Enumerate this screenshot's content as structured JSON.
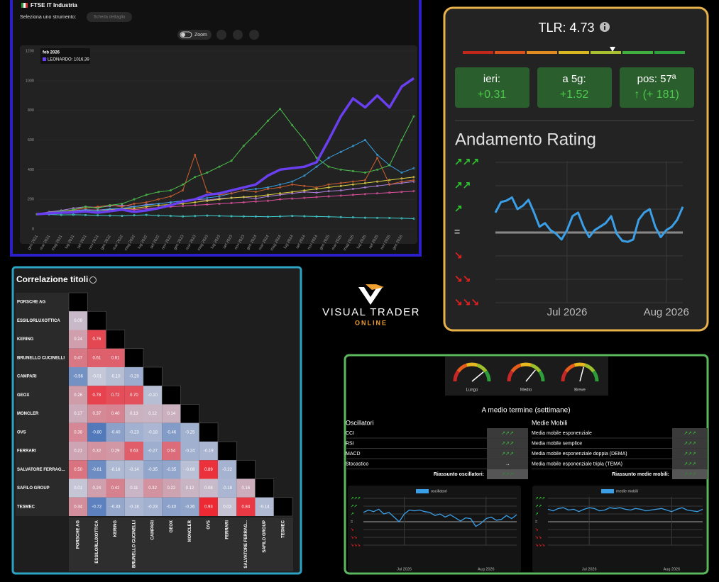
{
  "price_chart": {
    "title": "FTSE IT Industria",
    "select_label": "Seleziona uno strumento:",
    "detail_button": "Scheda dettaglio",
    "zoom_label": "Zoom",
    "tooltip_date": "feb 2026",
    "tooltip_text": "LEONARDO: 1016,39",
    "ylim": [
      0,
      1200
    ],
    "yticks": [
      0,
      200,
      400,
      600,
      800,
      1000,
      1200
    ],
    "categories": [
      "gen 2021",
      "mar 2021",
      "mag 2021",
      "lug 2021",
      "set 2021",
      "nov 2021",
      "gen 2022",
      "mar 2022",
      "mag 2022",
      "lug 2022",
      "set 2022",
      "nov 2022",
      "gen 2023",
      "mar 2023",
      "mag 2023",
      "lug 2023",
      "set 2023",
      "nov 2023",
      "gen 2024",
      "mar 2024",
      "mag 2024",
      "lug 2024",
      "set 2024",
      "nov 2024",
      "gen 2025",
      "mar 2025",
      "mag 2025",
      "lug 2025",
      "set 2025",
      "nov 2025",
      "gen 2026",
      null
    ],
    "series": [
      {
        "color": "#40d0d0",
        "values": [
          100,
          98,
          95,
          96,
          94,
          92,
          90,
          88,
          92,
          95,
          90,
          88,
          85,
          87,
          90,
          88,
          86,
          85,
          84,
          82,
          85,
          88,
          86,
          84,
          82,
          80,
          78,
          76,
          75,
          74,
          72,
          70
        ]
      },
      {
        "color": "#e050a0",
        "values": [
          100,
          110,
          120,
          125,
          130,
          128,
          135,
          140,
          130,
          138,
          145,
          150,
          155,
          160,
          165,
          170,
          175,
          180,
          185,
          190,
          200,
          205,
          210,
          215,
          220,
          225,
          230,
          235,
          240,
          245,
          250,
          255
        ]
      },
      {
        "color": "#b080e0",
        "values": [
          100,
          115,
          125,
          140,
          150,
          145,
          155,
          160,
          150,
          165,
          170,
          180,
          190,
          200,
          195,
          205,
          210,
          215,
          205,
          220,
          230,
          240,
          250,
          245,
          255,
          260,
          270,
          280,
          290,
          300,
          310,
          320
        ]
      },
      {
        "color": "#e0d040",
        "values": [
          100,
          105,
          112,
          120,
          128,
          125,
          130,
          135,
          140,
          150,
          160,
          165,
          170,
          180,
          190,
          200,
          210,
          215,
          220,
          230,
          240,
          250,
          260,
          270,
          280,
          290,
          300,
          310,
          320,
          330,
          340,
          350
        ]
      },
      {
        "color": "#3aa0e0",
        "values": [
          100,
          105,
          110,
          120,
          130,
          125,
          135,
          140,
          150,
          160,
          170,
          180,
          190,
          200,
          210,
          220,
          240,
          260,
          270,
          280,
          300,
          320,
          360,
          420,
          480,
          520,
          560,
          600,
          500,
          430,
          380,
          410
        ]
      },
      {
        "color": "#d06030",
        "values": [
          100,
          110,
          115,
          130,
          140,
          150,
          160,
          150,
          170,
          180,
          200,
          220,
          260,
          500,
          250,
          230,
          240,
          260,
          250,
          270,
          280,
          300,
          290,
          280,
          300,
          310,
          320,
          330,
          480,
          300,
          320,
          330
        ]
      },
      {
        "color": "#4cc04c",
        "values": [
          100,
          110,
          120,
          130,
          150,
          140,
          160,
          170,
          200,
          230,
          250,
          260,
          300,
          350,
          380,
          420,
          460,
          560,
          640,
          730,
          810,
          700,
          600,
          480,
          420,
          400,
          390,
          380,
          400,
          430,
          600,
          760
        ]
      },
      {
        "color": "#6a3ff0",
        "values": [
          100,
          105,
          110,
          112,
          118,
          110,
          120,
          130,
          115,
          125,
          140,
          160,
          185,
          200,
          230,
          240,
          260,
          280,
          300,
          360,
          400,
          410,
          420,
          450,
          600,
          760,
          880,
          820,
          900,
          820,
          960,
          1016.39
        ]
      }
    ]
  },
  "rating_panel": {
    "tlr": "TLR: 4.73",
    "boxes": [
      {
        "label": "ieri:",
        "value": "+0.31"
      },
      {
        "label": "a 5g:",
        "value": "+1.52"
      },
      {
        "label": "pos: 57ª",
        "value": "↑ (+ 181)"
      }
    ],
    "title": "Andamento Rating",
    "color": "#3a9fe6",
    "categories": [
      null,
      null,
      null,
      null,
      null,
      null,
      null,
      null,
      null,
      null,
      null,
      null,
      null,
      "Jul 2026",
      null,
      null,
      null,
      null,
      null,
      null,
      null,
      null,
      null,
      null,
      null,
      null,
      null,
      null,
      null,
      null,
      null,
      "Aug 2026",
      null,
      null,
      null
    ],
    "values": [
      0.85,
      1.3,
      1.36,
      1.5,
      1.0,
      1.15,
      1.4,
      0.85,
      0.25,
      0.4,
      0.1,
      -0.05,
      -0.3,
      0.1,
      0.7,
      0.85,
      0.25,
      -0.2,
      0.1,
      0.25,
      0.4,
      0.7,
      -0.05,
      -0.35,
      -0.4,
      -0.3,
      0.55,
      0.85,
      1.0,
      0.25,
      -0.2,
      0.1,
      0.25,
      0.55,
      1.1
    ]
  },
  "rating_levels": [
    {
      "value": 3,
      "label": "↗↗↗"
    },
    {
      "value": 2,
      "label": "↗↗"
    },
    {
      "value": 1,
      "label": "↗"
    },
    {
      "value": 0,
      "label": "="
    },
    {
      "value": -1,
      "label": "↘"
    },
    {
      "value": -2,
      "label": "↘↘"
    },
    {
      "value": -3,
      "label": "↘↘↘"
    }
  ],
  "correlation": {
    "title": "Correlazione titoli",
    "names": [
      "PORSCHE AG",
      "ESSILORLUXOTTICA",
      "KERING",
      "BRUNELLO CUCINELLI",
      "CAMPARI",
      "GEOX",
      "MONCLER",
      "OVS",
      "FERRARI",
      "SALVATORE FERRAG...",
      "SAFILO GROUP",
      "TESMEC"
    ],
    "matrix": [
      [],
      [
        0.09
      ],
      [
        0.24,
        0.76
      ],
      [
        0.47,
        0.61,
        0.61
      ],
      [
        -0.56,
        -0.01,
        -0.1,
        -0.29
      ],
      [
        0.26,
        0.78,
        0.72,
        0.7,
        -0.1
      ],
      [
        0.17,
        0.37,
        0.4,
        0.13,
        0.12,
        0.14
      ],
      [
        0.38,
        -0.8,
        -0.4,
        -0.23,
        -0.18,
        -0.46,
        -0.25
      ],
      [
        0.21,
        0.32,
        0.29,
        0.63,
        -0.27,
        0.54,
        -0.24,
        -0.19
      ],
      [
        0.5,
        -0.61,
        -0.16,
        -0.14,
        -0.35,
        -0.35,
        -0.08,
        0.89,
        -0.22
      ],
      [
        0.01,
        0.24,
        0.42,
        0.11,
        0.32,
        0.22,
        0.12,
        0.08,
        -0.18,
        0.16
      ],
      [
        0.34,
        -0.72,
        -0.33,
        -0.18,
        -0.23,
        -0.4,
        -0.36,
        0.93,
        0.03,
        0.84,
        -0.14
      ]
    ],
    "labels": [
      [],
      [
        "0.09"
      ],
      [
        "0.24",
        "0.76"
      ],
      [
        "0.47",
        "0.61",
        "0.61"
      ],
      [
        "-0.56",
        "-0.01",
        "-0.10",
        "-0.29"
      ],
      [
        "0.26",
        "0.78",
        "0.72",
        "0.70",
        "-0.10"
      ],
      [
        "0.17",
        "0.37",
        "0.40",
        "0.13",
        "0.12",
        "0.14"
      ],
      [
        "0.38",
        "-0.80",
        "-0.40",
        "-0.23",
        "-0.18",
        "-0.46",
        "-0.25"
      ],
      [
        "0.21",
        "0.32",
        "0.29",
        "0.63",
        "-0.27",
        "0.54",
        "-0.24",
        "-0.19"
      ],
      [
        "0.50",
        "-0.61",
        "-0.16",
        "-0.14",
        "-0.35",
        "-0.35",
        "-0.08",
        "0.89",
        "-0.22"
      ],
      [
        "0.01",
        "0.24",
        "0.42",
        "0.11",
        "0.32",
        "0.22",
        "0.12",
        "0.08",
        "-0.18",
        "0.16"
      ],
      [
        "0.34",
        "-0.72",
        "-0.33",
        "-0.18",
        "-0.23",
        "-0.40",
        "-0.36",
        "0.93",
        "0.03",
        "0.84",
        "-0.14"
      ]
    ]
  },
  "logo": {
    "name": "VISUAL TRADER",
    "tagline": "ONLINE"
  },
  "indicators": {
    "gauges": [
      {
        "label": "Lungo",
        "value": 78
      },
      {
        "label": "Medio",
        "value": 72
      },
      {
        "label": "Breve",
        "value": 58
      }
    ],
    "heading": "A medio termine (settimane)",
    "oscillators": {
      "title": "Oscillatori",
      "rows": [
        {
          "name": "CCI",
          "signal": "↗↗↗",
          "color": "#3cc43c"
        },
        {
          "name": "RSI",
          "signal": "↗↗↗",
          "color": "#3cc43c"
        },
        {
          "name": "MACD",
          "signal": "↗↗↗",
          "color": "#3cc43c"
        },
        {
          "name": "Stocastico",
          "signal": "→",
          "color": "#ffffff"
        }
      ],
      "summary_label": "Riassunto oscillatori:",
      "summary_signal": "↗↗↗",
      "summary_color": "#2e8a2e"
    },
    "moving_averages": {
      "title": "Medie Mobili",
      "rows": [
        {
          "name": "Media mobile esponenziale",
          "signal": "↗↗↗",
          "color": "#3cc43c"
        },
        {
          "name": "Media mobile semplice",
          "signal": "↗↗↗",
          "color": "#3cc43c"
        },
        {
          "name": "Media mobile esponenziale doppia (DEMA)",
          "signal": "↗↗↗",
          "color": "#3cc43c"
        },
        {
          "name": "Media mobile esponenziale tripla (TEMA)",
          "signal": "↗↗↗",
          "color": "#3cc43c"
        }
      ],
      "summary_label": "Riassunto medie mobili:",
      "summary_signal": "↗↗↗",
      "summary_color": "#2e8a2e"
    },
    "charts": [
      {
        "legend": "oscillatori",
        "color": "#3a9fe6",
        "categories": [
          null,
          null,
          null,
          null,
          null,
          null,
          null,
          null,
          "Jul 2026",
          null,
          null,
          null,
          null,
          null,
          null,
          null,
          null,
          null,
          null,
          null,
          null,
          null,
          null,
          null,
          "Aug 2026",
          null,
          null,
          null,
          null,
          null,
          null
        ],
        "values": [
          1.2,
          1.5,
          1.3,
          1.6,
          1.0,
          1.2,
          0.6,
          0.0,
          1.0,
          1.5,
          1.4,
          1.5,
          1.3,
          1.2,
          0.8,
          1.0,
          0.6,
          0.9,
          0.5,
          0.1,
          0.5,
          0.4,
          -0.6,
          -0.2,
          0.4,
          0.6,
          0.2,
          0.3,
          0.8,
          0.4,
          0.9
        ]
      },
      {
        "legend": "medie mobili",
        "color": "#3a9fe6",
        "categories": [
          null,
          null,
          null,
          null,
          null,
          null,
          null,
          null,
          "Jul 2026",
          null,
          null,
          null,
          null,
          null,
          null,
          null,
          null,
          null,
          null,
          null,
          null,
          null,
          null,
          null,
          "Aug 2026",
          null,
          null,
          null,
          null,
          null,
          null
        ],
        "values": [
          1.6,
          1.4,
          1.7,
          1.8,
          1.5,
          1.6,
          1.3,
          1.6,
          1.8,
          1.7,
          1.4,
          1.5,
          1.8,
          1.7,
          1.8,
          1.6,
          1.5,
          1.7,
          1.6,
          1.4,
          1.5,
          1.6,
          1.7,
          1.5,
          1.3,
          1.6,
          1.8,
          1.5,
          1.4,
          1.3,
          1.6
        ]
      }
    ]
  }
}
